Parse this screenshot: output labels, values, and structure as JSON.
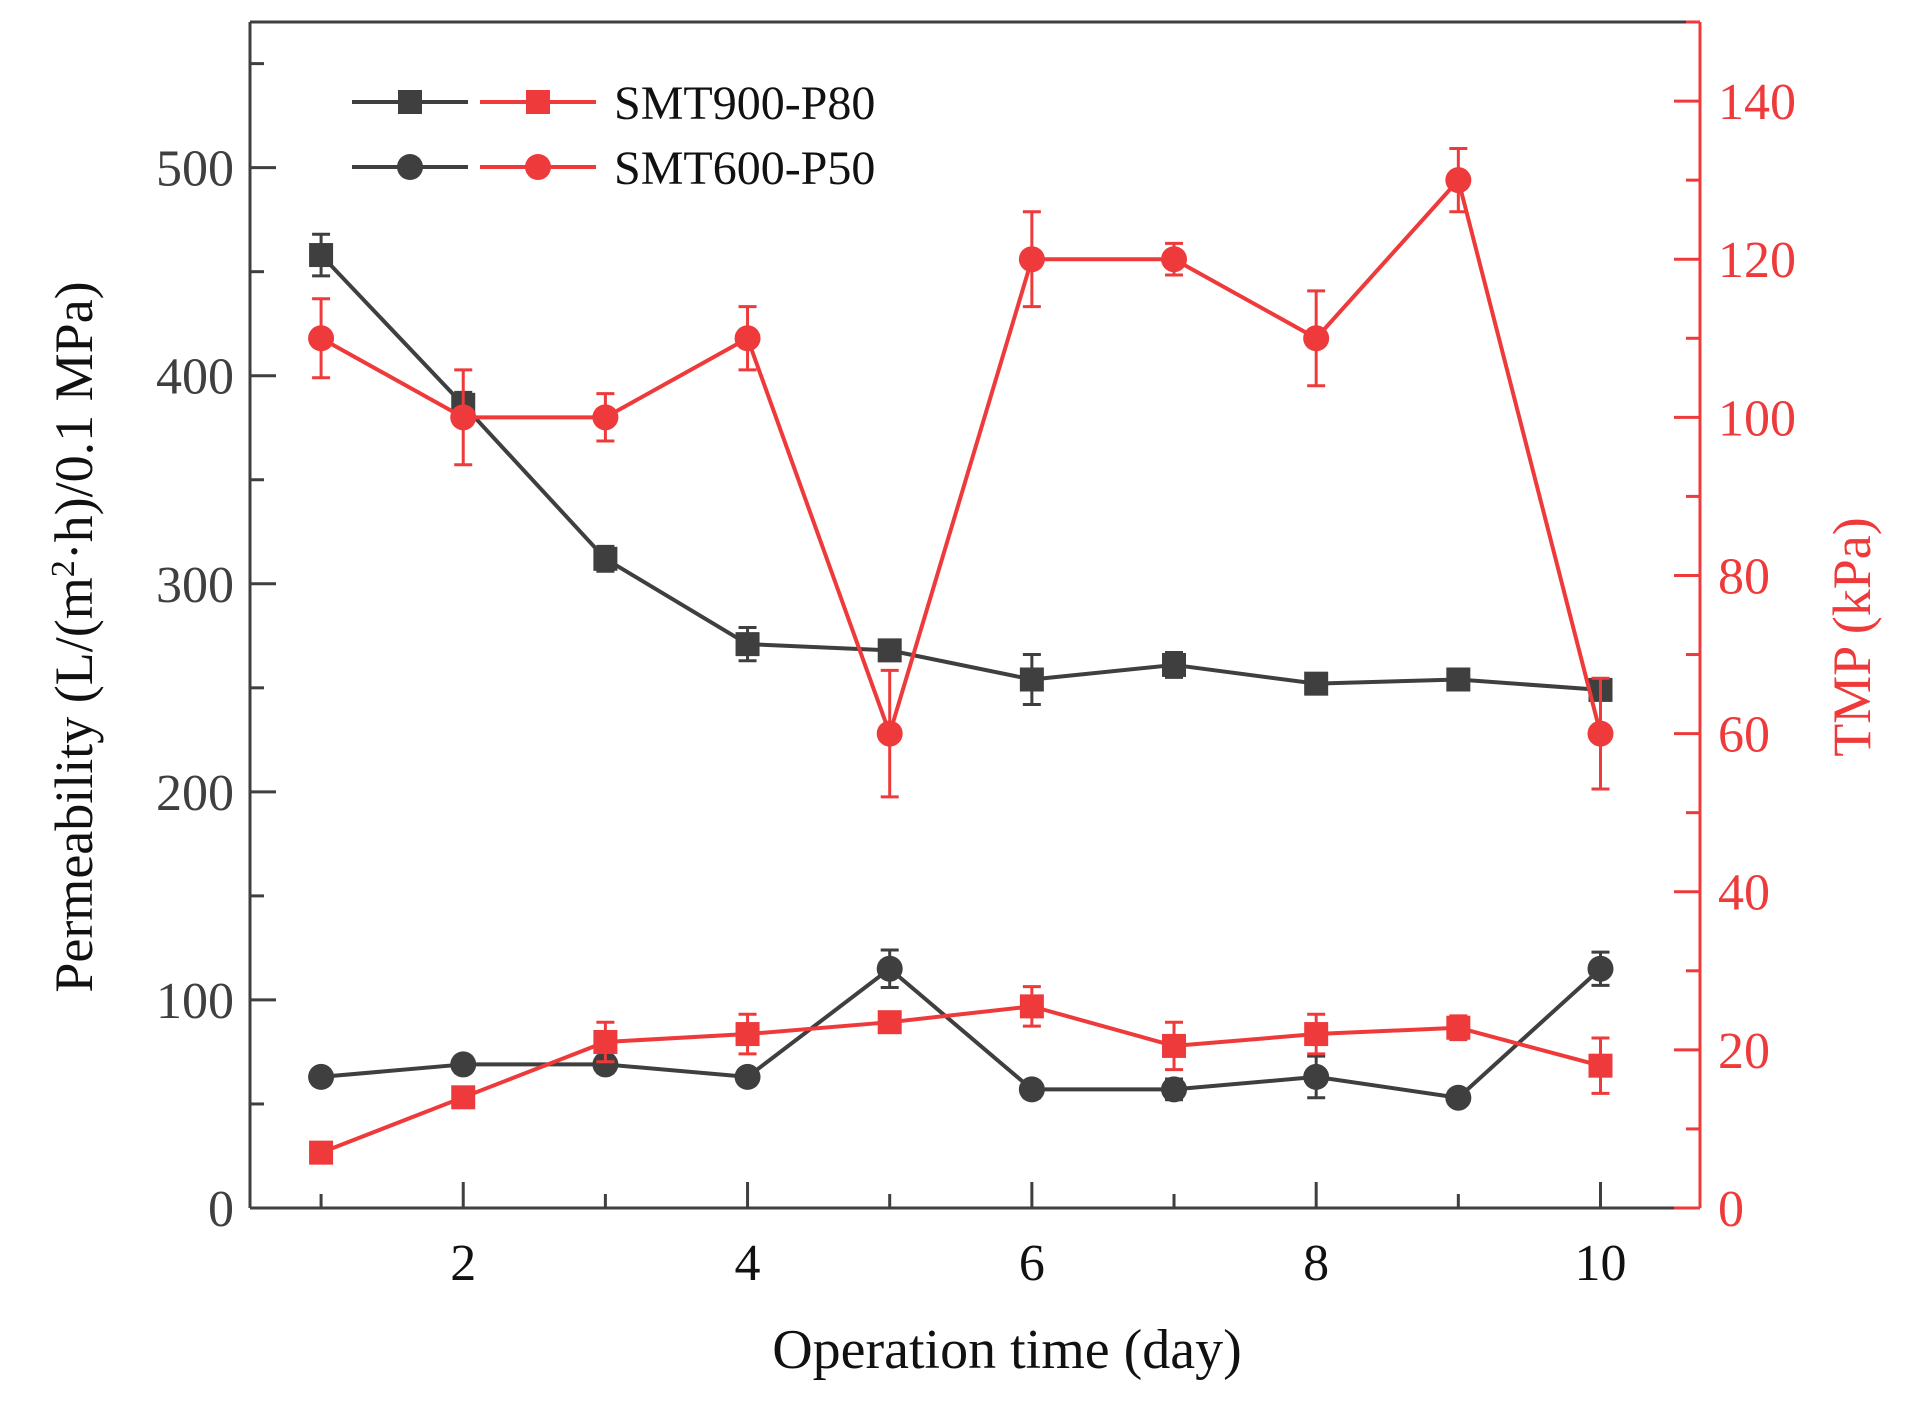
{
  "chart_data": {
    "type": "line",
    "xlabel": "Operation time (day)",
    "ylabel_left": {
      "prefix": "Permeability (L/(m",
      "sup": "2",
      "suffix": "·h)/0.1 MPa)"
    },
    "ylabel_right": "TMP (kPa)",
    "x_ticks": [
      2,
      4,
      6,
      8,
      10
    ],
    "xlim": [
      0.5,
      10.7
    ],
    "y_left_ticks": [
      0,
      100,
      200,
      300,
      400,
      500
    ],
    "ylim_left": [
      0,
      570
    ],
    "y_right_ticks": [
      0,
      20,
      40,
      60,
      80,
      100,
      120,
      140
    ],
    "ylim_right": [
      0,
      150
    ],
    "grid": false,
    "legend_position": "top-left",
    "legend": [
      {
        "label": "SMT900-P80",
        "marker": "square"
      },
      {
        "label": "SMT600-P50",
        "marker": "circle"
      }
    ],
    "colors": {
      "permeability": "#3f3f3f",
      "tmp": "#ee3a3a",
      "axis_left": "#3f3f3f",
      "axis_right": "#ee3a3a"
    },
    "series": [
      {
        "axis": "left",
        "marker": "square",
        "color": "#3f3f3f",
        "x": [
          1,
          2,
          3,
          4,
          5,
          6,
          7,
          8,
          9,
          10
        ],
        "y": [
          458,
          386,
          312,
          271,
          268,
          254,
          261,
          252,
          254,
          249
        ],
        "err": [
          10,
          6,
          6,
          8,
          4,
          12,
          6,
          4,
          3,
          4
        ]
      },
      {
        "axis": "left",
        "marker": "circle",
        "color": "#3f3f3f",
        "x": [
          1,
          2,
          3,
          4,
          5,
          6,
          7,
          8,
          9,
          10
        ],
        "y": [
          63,
          69,
          69,
          63,
          115,
          57,
          57,
          63,
          53,
          115
        ],
        "err": [
          3,
          4,
          4,
          3,
          9,
          4,
          5,
          10,
          3,
          8
        ]
      },
      {
        "axis": "right",
        "marker": "square",
        "color": "#ee3a3a",
        "x": [
          1,
          2,
          3,
          4,
          5,
          6,
          7,
          8,
          9,
          10
        ],
        "y": [
          7,
          14,
          21,
          22,
          23.5,
          25.5,
          20.5,
          22,
          22.8,
          18
        ],
        "err": [
          0.6,
          0.6,
          2.5,
          2.5,
          0.8,
          2.5,
          3,
          2.5,
          1.5,
          3.5
        ]
      },
      {
        "axis": "right",
        "marker": "circle",
        "color": "#ee3a3a",
        "x": [
          1,
          2,
          3,
          4,
          5,
          6,
          7,
          8,
          9,
          10
        ],
        "y": [
          110,
          100,
          100,
          110,
          60,
          120,
          120,
          110,
          130,
          60
        ],
        "err": [
          5,
          6,
          3,
          4,
          8,
          6,
          2,
          6,
          4,
          7
        ]
      }
    ]
  }
}
